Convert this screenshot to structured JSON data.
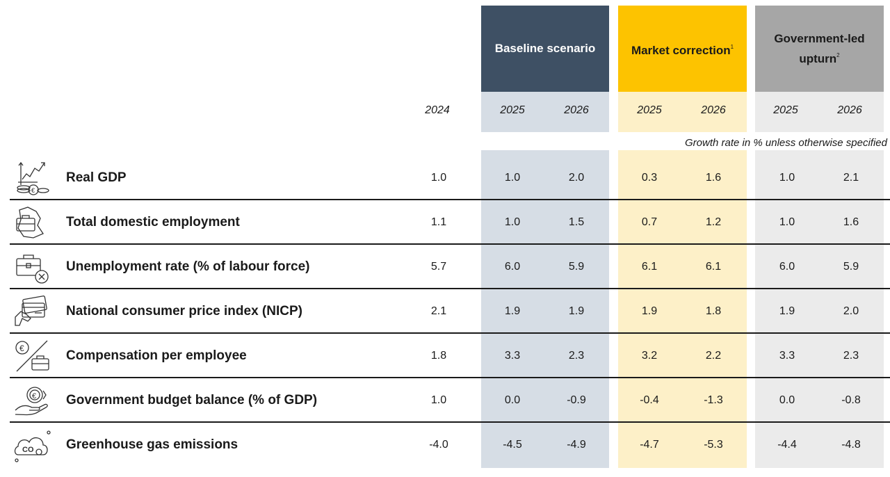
{
  "headers": {
    "baseline": "Baseline scenario",
    "market_label": "Market correction",
    "market_note": "1",
    "government_label_line1": "Government-led",
    "government_label_line2": "upturn",
    "government_note": "2"
  },
  "years": {
    "y2024": "2024",
    "base_2025": "2025",
    "base_2026": "2026",
    "mkt_2025": "2025",
    "mkt_2026": "2026",
    "gov_2025": "2025",
    "gov_2026": "2026"
  },
  "unit_note": "Growth rate in % unless otherwise specified",
  "colors": {
    "baseline_header": "#3e5064",
    "baseline_column": "#d6dde5",
    "market_header": "#fdc300",
    "market_column": "#fdf0c8",
    "government_header": "#a6a6a6",
    "government_column": "#ebebeb"
  },
  "rows": [
    {
      "label": "Real GDP",
      "icon": "growth-chart-coins-icon",
      "v2024": "1.0",
      "base2025": "1.0",
      "base2026": "2.0",
      "mkt2025": "0.3",
      "mkt2026": "1.6",
      "gov2025": "1.0",
      "gov2026": "2.1"
    },
    {
      "label": "Total domestic employment",
      "icon": "briefcase-map-icon",
      "v2024": "1.1",
      "base2025": "1.0",
      "base2026": "1.5",
      "mkt2025": "0.7",
      "mkt2026": "1.2",
      "gov2025": "1.0",
      "gov2026": "1.6"
    },
    {
      "label": "Unemployment rate (% of labour force)",
      "icon": "briefcase-cross-icon",
      "v2024": "5.7",
      "base2025": "6.0",
      "base2026": "5.9",
      "mkt2025": "6.1",
      "mkt2026": "6.1",
      "gov2025": "6.0",
      "gov2026": "5.9"
    },
    {
      "label": "National consumer price index (NICP)",
      "icon": "card-payment-icon",
      "v2024": "2.1",
      "base2025": "1.9",
      "base2026": "1.9",
      "mkt2025": "1.9",
      "mkt2026": "1.8",
      "gov2025": "1.9",
      "gov2026": "2.0"
    },
    {
      "label": "Compensation per employee",
      "icon": "euro-briefcase-icon",
      "v2024": "1.8",
      "base2025": "3.3",
      "base2026": "2.3",
      "mkt2025": "3.2",
      "mkt2026": "2.2",
      "gov2025": "3.3",
      "gov2026": "2.3"
    },
    {
      "label": "Government budget balance (% of GDP)",
      "icon": "hand-euro-icon",
      "v2024": "1.0",
      "base2025": "0.0",
      "base2026": "-0.9",
      "mkt2025": "-0.4",
      "mkt2026": "-1.3",
      "gov2025": "0.0",
      "gov2026": "-0.8"
    },
    {
      "label": "Greenhouse gas emissions",
      "icon": "co2-cloud-icon",
      "v2024": "-4.0",
      "base2025": "-4.5",
      "base2026": "-4.9",
      "mkt2025": "-4.7",
      "mkt2026": "-5.3",
      "gov2025": "-4.4",
      "gov2026": "-4.8"
    }
  ]
}
